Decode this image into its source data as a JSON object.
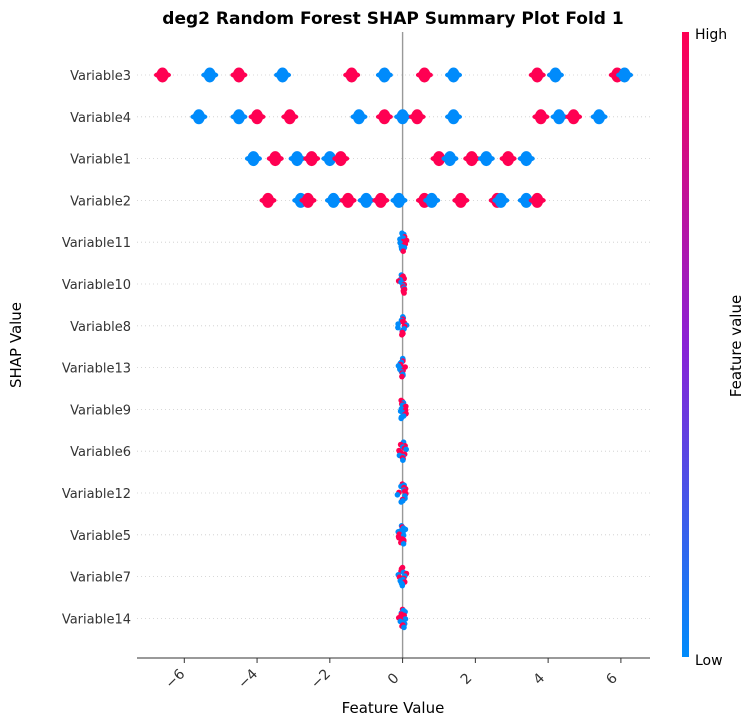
{
  "chart_data": {
    "type": "scatter",
    "title": "deg2 Random Forest SHAP Summary Plot Fold 1",
    "xlabel": "Feature Value",
    "ylabel": "SHAP Value",
    "xlim": [
      -7.3,
      6.8
    ],
    "xticks": [
      -6,
      -4,
      -2,
      0,
      2,
      4,
      6
    ],
    "xtick_labels": [
      "−6",
      "−4",
      "−2",
      "0",
      "2",
      "4",
      "6"
    ],
    "colorbar": {
      "label": "Feature value",
      "high_label": "High",
      "low_label": "Low",
      "high_color": "#ff0052",
      "low_color": "#008bfb"
    },
    "features": [
      {
        "name": "Variable3",
        "clusters": [
          {
            "x": -6.6,
            "c": "high"
          },
          {
            "x": -5.3,
            "c": "low"
          },
          {
            "x": -4.5,
            "c": "high"
          },
          {
            "x": -3.3,
            "c": "low"
          },
          {
            "x": -1.4,
            "c": "high"
          },
          {
            "x": -0.5,
            "c": "low"
          },
          {
            "x": 0.6,
            "c": "high"
          },
          {
            "x": 1.4,
            "c": "low"
          },
          {
            "x": 3.7,
            "c": "high"
          },
          {
            "x": 4.2,
            "c": "low"
          },
          {
            "x": 5.9,
            "c": "high"
          },
          {
            "x": 6.1,
            "c": "low"
          }
        ]
      },
      {
        "name": "Variable4",
        "clusters": [
          {
            "x": -5.6,
            "c": "low"
          },
          {
            "x": -4.5,
            "c": "low"
          },
          {
            "x": -4.0,
            "c": "high"
          },
          {
            "x": -3.1,
            "c": "high"
          },
          {
            "x": -1.2,
            "c": "low"
          },
          {
            "x": -0.5,
            "c": "high"
          },
          {
            "x": 0.0,
            "c": "low"
          },
          {
            "x": 0.4,
            "c": "high"
          },
          {
            "x": 1.4,
            "c": "low"
          },
          {
            "x": 3.8,
            "c": "high"
          },
          {
            "x": 4.3,
            "c": "low"
          },
          {
            "x": 4.7,
            "c": "high"
          },
          {
            "x": 5.4,
            "c": "low"
          }
        ]
      },
      {
        "name": "Variable1",
        "clusters": [
          {
            "x": -4.1,
            "c": "low"
          },
          {
            "x": -3.5,
            "c": "high"
          },
          {
            "x": -2.9,
            "c": "low"
          },
          {
            "x": -2.5,
            "c": "high"
          },
          {
            "x": -2.0,
            "c": "low"
          },
          {
            "x": -1.7,
            "c": "high"
          },
          {
            "x": 1.0,
            "c": "high"
          },
          {
            "x": 1.3,
            "c": "low"
          },
          {
            "x": 1.9,
            "c": "high"
          },
          {
            "x": 2.3,
            "c": "low"
          },
          {
            "x": 2.9,
            "c": "high"
          },
          {
            "x": 3.4,
            "c": "low"
          }
        ]
      },
      {
        "name": "Variable2",
        "clusters": [
          {
            "x": -3.7,
            "c": "high"
          },
          {
            "x": -2.8,
            "c": "low"
          },
          {
            "x": -2.6,
            "c": "high"
          },
          {
            "x": -1.9,
            "c": "low"
          },
          {
            "x": -1.5,
            "c": "high"
          },
          {
            "x": -1.0,
            "c": "low"
          },
          {
            "x": -0.6,
            "c": "high"
          },
          {
            "x": -0.1,
            "c": "low"
          },
          {
            "x": 0.6,
            "c": "high"
          },
          {
            "x": 0.8,
            "c": "low"
          },
          {
            "x": 1.6,
            "c": "high"
          },
          {
            "x": 2.6,
            "c": "high"
          },
          {
            "x": 2.7,
            "c": "low"
          },
          {
            "x": 3.4,
            "c": "low"
          },
          {
            "x": 3.7,
            "c": "high"
          }
        ]
      },
      {
        "name": "Variable11",
        "clusters": []
      },
      {
        "name": "Variable10",
        "clusters": []
      },
      {
        "name": "Variable8",
        "clusters": []
      },
      {
        "name": "Variable13",
        "clusters": []
      },
      {
        "name": "Variable9",
        "clusters": []
      },
      {
        "name": "Variable6",
        "clusters": []
      },
      {
        "name": "Variable12",
        "clusters": []
      },
      {
        "name": "Variable5",
        "clusters": []
      },
      {
        "name": "Variable7",
        "clusters": []
      },
      {
        "name": "Variable14",
        "clusters": []
      }
    ]
  }
}
